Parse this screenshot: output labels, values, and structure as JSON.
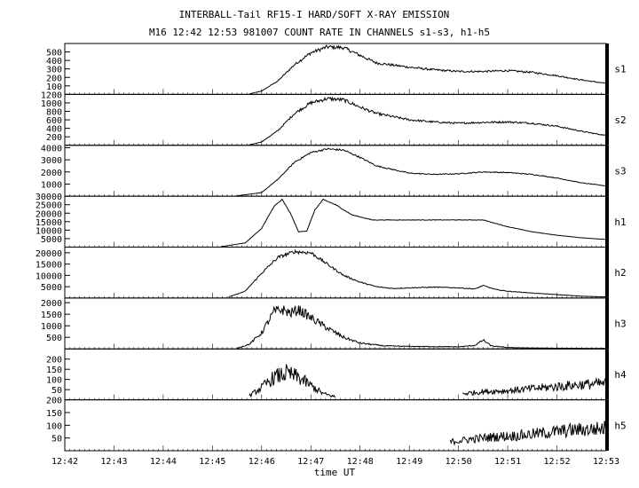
{
  "title": "INTERBALL-Tail RF15-I HARD/SOFT X-RAY EMISSION",
  "subtitle": "M16  12:42 12:53 981007  COUNT RATE IN CHANNELS s1-s3, h1-h5",
  "chart_data": {
    "type": "line",
    "title": "INTERBALL-Tail RF15-I HARD/SOFT X-RAY EMISSION",
    "subtitle": "M16  12:42 12:53 981007  COUNT RATE IN CHANNELS s1-s3, h1-h5",
    "xlabel": "time UT",
    "xlim": [
      "12:42",
      "12:53"
    ],
    "x_ticks": [
      "12:42",
      "12:43",
      "12:44",
      "12:45",
      "12:46",
      "12:47",
      "12:48",
      "12:49",
      "12:50",
      "12:51",
      "12:52",
      "12:53"
    ],
    "grid": false,
    "panels": [
      {
        "name": "s1",
        "ylim": [
          0,
          600
        ],
        "y_ticks": [
          100,
          200,
          300,
          400,
          500
        ],
        "x": [
          "12:45:45",
          "12:46:00",
          "12:46:20",
          "12:46:40",
          "12:47:00",
          "12:47:20",
          "12:47:40",
          "12:48:00",
          "12:48:20",
          "12:49:00",
          "12:49:30",
          "12:50:00",
          "12:50:30",
          "12:51:00",
          "12:51:30",
          "12:52:00",
          "12:52:30",
          "12:53:00"
        ],
        "y": [
          5,
          40,
          160,
          350,
          490,
          560,
          550,
          460,
          370,
          320,
          290,
          270,
          270,
          280,
          260,
          220,
          170,
          130
        ]
      },
      {
        "name": "s2",
        "ylim": [
          0,
          1200
        ],
        "y_ticks": [
          200,
          400,
          600,
          800,
          1000,
          1200
        ],
        "x": [
          "12:45:45",
          "12:46:00",
          "12:46:20",
          "12:46:40",
          "12:47:00",
          "12:47:20",
          "12:47:40",
          "12:48:00",
          "12:48:20",
          "12:49:00",
          "12:49:30",
          "12:50:00",
          "12:50:30",
          "12:51:00",
          "12:51:30",
          "12:52:00",
          "12:52:30",
          "12:53:00"
        ],
        "y": [
          10,
          80,
          350,
          750,
          1000,
          1100,
          1070,
          900,
          750,
          600,
          550,
          520,
          540,
          550,
          520,
          450,
          330,
          230
        ]
      },
      {
        "name": "s3",
        "ylim": [
          0,
          4200
        ],
        "y_ticks": [
          1000,
          2000,
          3000,
          4000
        ],
        "x": [
          "12:45:30",
          "12:46:00",
          "12:46:20",
          "12:46:40",
          "12:47:00",
          "12:47:20",
          "12:47:40",
          "12:48:00",
          "12:48:20",
          "12:49:00",
          "12:49:30",
          "12:50:00",
          "12:50:30",
          "12:51:00",
          "12:51:30",
          "12:52:00",
          "12:52:30",
          "12:53:00"
        ],
        "y": [
          30,
          300,
          1400,
          2800,
          3600,
          3900,
          3800,
          3200,
          2500,
          1900,
          1800,
          1850,
          2000,
          1950,
          1800,
          1500,
          1100,
          850
        ]
      },
      {
        "name": "h1",
        "ylim": [
          0,
          30000
        ],
        "y_ticks": [
          5000,
          10000,
          15000,
          20000,
          25000,
          30000
        ],
        "x": [
          "12:45:10",
          "12:45:40",
          "12:46:00",
          "12:46:15",
          "12:46:25",
          "12:46:35",
          "12:46:45",
          "12:46:55",
          "12:47:05",
          "12:47:15",
          "12:47:30",
          "12:47:50",
          "12:48:15",
          "12:49:00",
          "12:49:30",
          "12:50:00",
          "12:50:30",
          "12:51:00",
          "12:51:30",
          "12:52:00",
          "12:52:30",
          "12:53:00"
        ],
        "y": [
          200,
          2500,
          11000,
          24000,
          28000,
          20000,
          9000,
          9500,
          22000,
          28000,
          25000,
          19000,
          16000,
          16000,
          16000,
          16000,
          16000,
          12000,
          9000,
          7000,
          5500,
          4500
        ]
      },
      {
        "name": "h2",
        "ylim": [
          0,
          22500
        ],
        "y_ticks": [
          5000,
          10000,
          15000,
          20000
        ],
        "x": [
          "12:45:20",
          "12:45:40",
          "12:46:00",
          "12:46:20",
          "12:46:40",
          "12:47:00",
          "12:47:20",
          "12:47:40",
          "12:48:00",
          "12:48:20",
          "12:48:40",
          "12:49:00",
          "12:49:30",
          "12:50:00",
          "12:50:20",
          "12:50:30",
          "12:50:45",
          "12:51:00",
          "12:51:30",
          "12:52:00",
          "12:52:30",
          "12:53:00"
        ],
        "y": [
          500,
          3000,
          11000,
          18000,
          20500,
          20000,
          15000,
          10000,
          7000,
          5000,
          4200,
          4500,
          4800,
          4500,
          4000,
          5500,
          3800,
          3000,
          2200,
          1500,
          800,
          500
        ]
      },
      {
        "name": "h3",
        "ylim": [
          0,
          2200
        ],
        "y_ticks": [
          500,
          1000,
          1500,
          2000
        ],
        "x": [
          "12:45:30",
          "12:45:45",
          "12:46:00",
          "12:46:15",
          "12:46:25",
          "12:46:35",
          "12:46:45",
          "12:47:00",
          "12:47:20",
          "12:47:40",
          "12:48:00",
          "12:48:30",
          "12:49:00",
          "12:49:30",
          "12:50:00",
          "12:50:20",
          "12:50:30",
          "12:50:40",
          "12:51:00",
          "12:51:30",
          "12:52:00",
          "12:52:30",
          "12:53:00"
        ],
        "y": [
          30,
          200,
          700,
          1600,
          1700,
          1550,
          1700,
          1350,
          900,
          500,
          250,
          130,
          110,
          100,
          90,
          150,
          380,
          130,
          60,
          40,
          30,
          25,
          20
        ]
      },
      {
        "name": "h4",
        "ylim": [
          0,
          250
        ],
        "y_ticks": [
          50,
          100,
          150,
          200
        ],
        "segments": [
          {
            "x": [
              "12:45:45",
              "12:46:00",
              "12:46:15",
              "12:46:30",
              "12:46:45",
              "12:47:00",
              "12:47:15",
              "12:47:30"
            ],
            "y": [
              20,
              60,
              110,
              130,
              110,
              70,
              30,
              15
            ]
          },
          {
            "x": [
              "12:50:05",
              "12:50:30",
              "12:51:00",
              "12:51:30",
              "12:52:00",
              "12:52:30",
              "12:53:00"
            ],
            "y": [
              30,
              40,
              45,
              55,
              65,
              75,
              80
            ]
          }
        ]
      },
      {
        "name": "h5",
        "ylim": [
          0,
          200
        ],
        "y_ticks": [
          50,
          100,
          150,
          200
        ],
        "x": [
          "12:49:50",
          "12:50:15",
          "12:50:45",
          "12:51:15",
          "12:51:45",
          "12:52:15",
          "12:52:45",
          "12:53:00"
        ],
        "y": [
          35,
          45,
          55,
          60,
          70,
          80,
          85,
          90
        ]
      }
    ]
  }
}
